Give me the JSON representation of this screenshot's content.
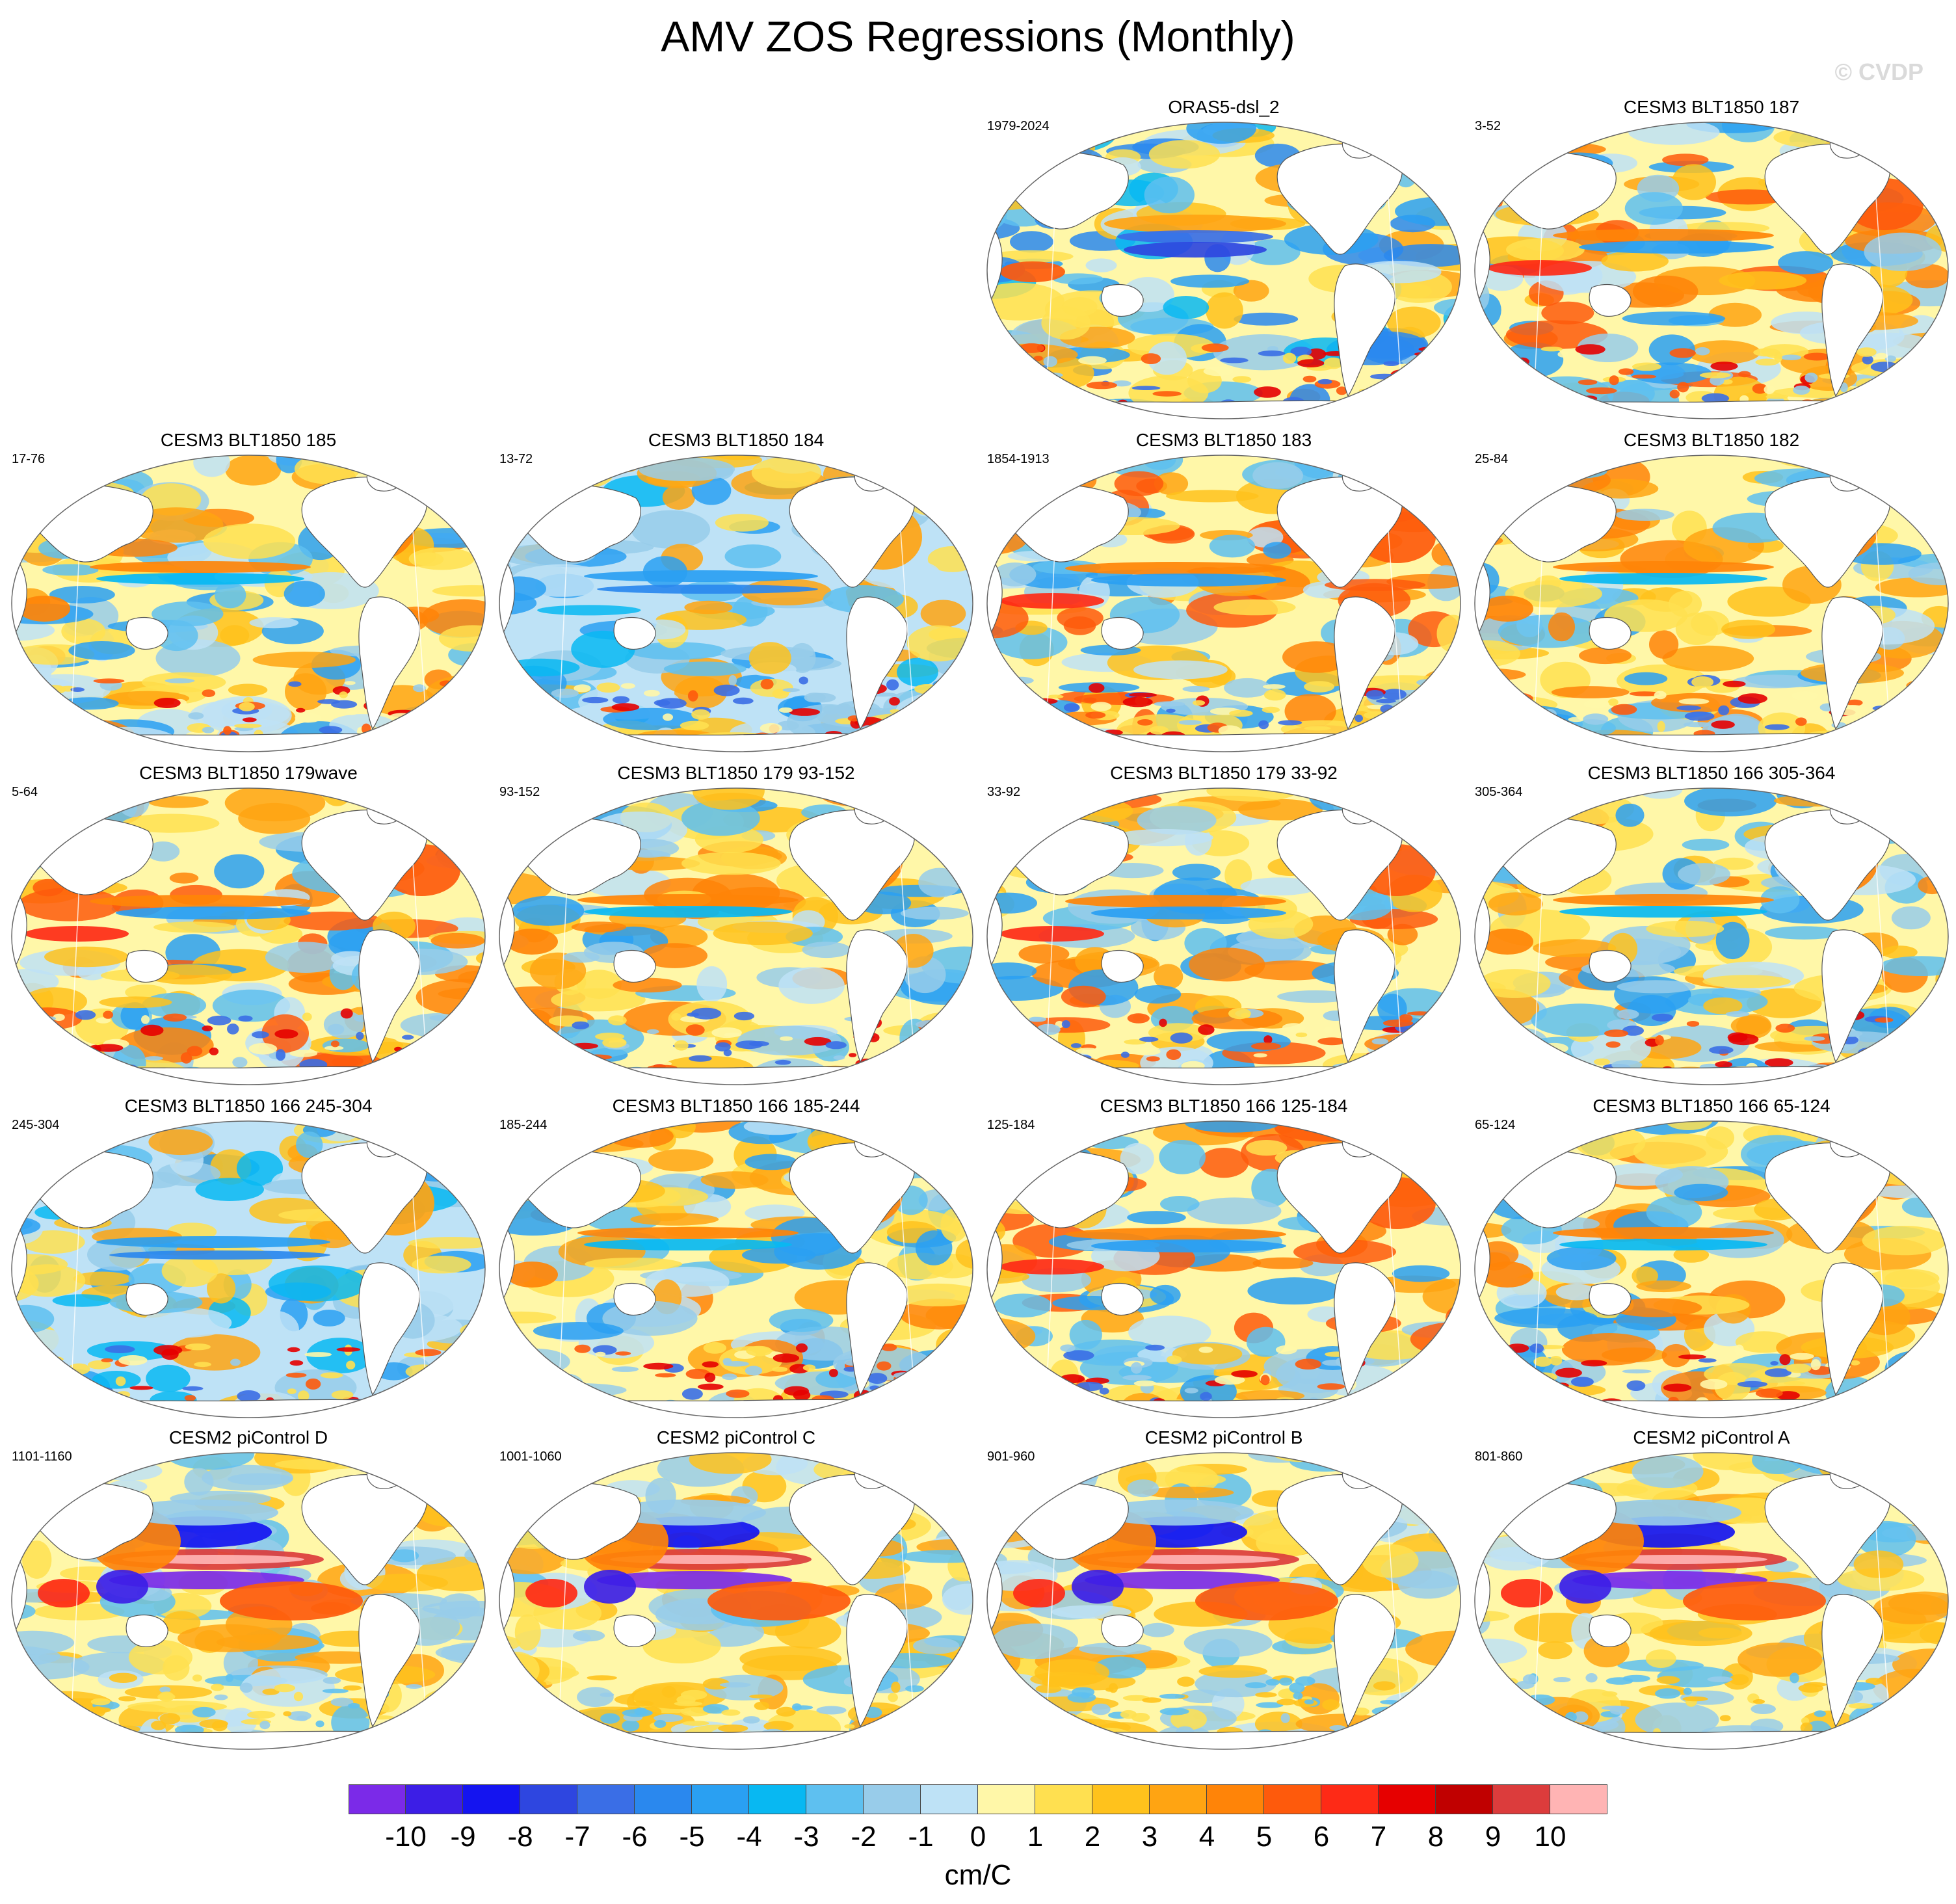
{
  "title": "AMV ZOS Regressions (Monthly)",
  "watermark": "© CVDP",
  "panels": [
    {
      "title": "ORAS5-dsl_2",
      "period": "1979-2024",
      "row": 0,
      "col": 2,
      "style": "obs"
    },
    {
      "title": "CESM3 BLT1850 187",
      "period": "3-52",
      "row": 0,
      "col": 3,
      "style": "a"
    },
    {
      "title": "CESM3 BLT1850 185",
      "period": "17-76",
      "row": 1,
      "col": 0,
      "style": "b"
    },
    {
      "title": "CESM3 BLT1850 184",
      "period": "13-72",
      "row": 1,
      "col": 1,
      "style": "c"
    },
    {
      "title": "CESM3 BLT1850 183",
      "period": "1854-1913",
      "row": 1,
      "col": 2,
      "style": "a"
    },
    {
      "title": "CESM3 BLT1850 182",
      "period": "25-84",
      "row": 1,
      "col": 3,
      "style": "b"
    },
    {
      "title": "CESM3 BLT1850 179wave",
      "period": "5-64",
      "row": 2,
      "col": 0,
      "style": "a"
    },
    {
      "title": "CESM3 BLT1850 179 93-152",
      "period": "93-152",
      "row": 2,
      "col": 1,
      "style": "b"
    },
    {
      "title": "CESM3 BLT1850 179 33-92",
      "period": "33-92",
      "row": 2,
      "col": 2,
      "style": "a"
    },
    {
      "title": "CESM3 BLT1850 166 305-364",
      "period": "305-364",
      "row": 2,
      "col": 3,
      "style": "b"
    },
    {
      "title": "CESM3 BLT1850 166 245-304",
      "period": "245-304",
      "row": 3,
      "col": 0,
      "style": "c"
    },
    {
      "title": "CESM3 BLT1850 166 185-244",
      "period": "185-244",
      "row": 3,
      "col": 1,
      "style": "b"
    },
    {
      "title": "CESM3 BLT1850 166 125-184",
      "period": "125-184",
      "row": 3,
      "col": 2,
      "style": "a"
    },
    {
      "title": "CESM3 BLT1850 166 65-124",
      "period": "65-124",
      "row": 3,
      "col": 3,
      "style": "b"
    },
    {
      "title": "CESM2 piControl D",
      "period": "1101-1160",
      "row": 4,
      "col": 0,
      "style": "enso"
    },
    {
      "title": "CESM2 piControl C",
      "period": "1001-1060",
      "row": 4,
      "col": 1,
      "style": "enso"
    },
    {
      "title": "CESM2 piControl B",
      "period": "901-960",
      "row": 4,
      "col": 2,
      "style": "enso"
    },
    {
      "title": "CESM2 piControl A",
      "period": "801-860",
      "row": 4,
      "col": 3,
      "style": "enso"
    }
  ],
  "colorbar": {
    "units": "cm/C",
    "colors": [
      "#7b2ae8",
      "#3c1ee6",
      "#1414f0",
      "#2e46e0",
      "#3a6ee6",
      "#2a88ee",
      "#2aa0f2",
      "#08b8f2",
      "#5ec0f0",
      "#98ccea",
      "#bee2f6",
      "#fff7a8",
      "#ffe050",
      "#ffc21c",
      "#ffa412",
      "#ff8408",
      "#fe5a0c",
      "#fe2a16",
      "#e60000",
      "#c00000",
      "#dc3c3c",
      "#ffb4b4"
    ],
    "ticks": [
      "-10",
      "-9",
      "-8",
      "-7",
      "-6",
      "-5",
      "-4",
      "-3",
      "-2",
      "-1",
      "0",
      "1",
      "2",
      "3",
      "4",
      "5",
      "6",
      "7",
      "8",
      "9",
      "10"
    ]
  }
}
